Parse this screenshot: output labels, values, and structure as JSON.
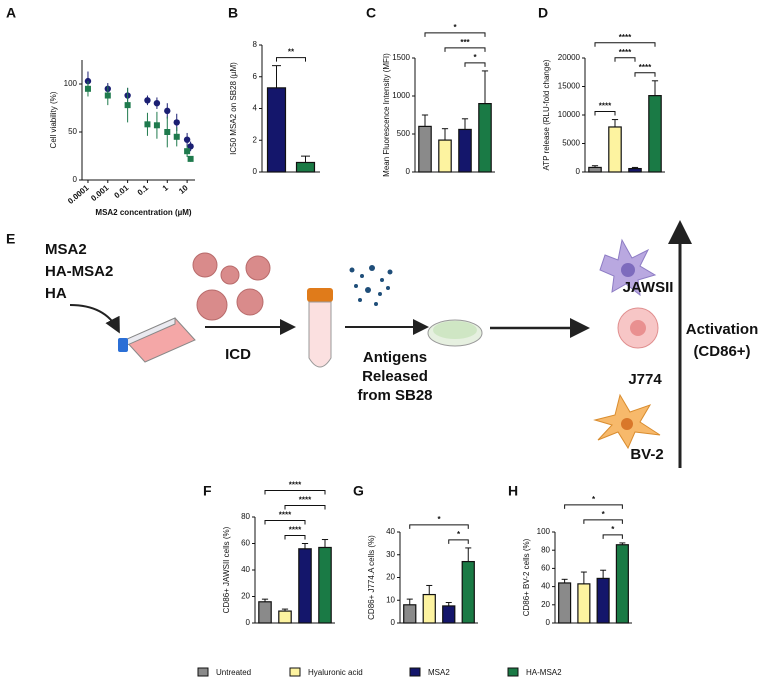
{
  "chart_data": [
    {
      "panel": "A",
      "type": "scatter",
      "y_label": "Cell viability (%)",
      "x_label": "MSA2 concentration (µM)",
      "log_x": true,
      "xlim": [
        5e-05,
        25
      ],
      "xticks": [
        0.0001,
        0.001,
        0.01,
        0.1,
        1,
        10
      ],
      "ylim": [
        0,
        125
      ],
      "yticks": [
        0,
        50,
        100
      ],
      "series": [
        {
          "color": "#1b1f73",
          "x": [
            0.0001,
            0.001,
            0.01,
            0.1,
            0.3,
            1,
            3,
            10,
            15
          ],
          "values": [
            103,
            95,
            88,
            83,
            80,
            72,
            60,
            42,
            35
          ],
          "errors": [
            10,
            6,
            8,
            5,
            6,
            8,
            9,
            7,
            5
          ]
        },
        {
          "color": "#1f7a4d",
          "x": [
            0.0001,
            0.001,
            0.01,
            0.1,
            0.3,
            1,
            3,
            10,
            15
          ],
          "values": [
            95,
            88,
            78,
            58,
            57,
            50,
            45,
            30,
            22
          ],
          "errors": [
            8,
            10,
            18,
            12,
            14,
            16,
            10,
            6,
            3
          ]
        }
      ]
    },
    {
      "panel": "B",
      "type": "bar",
      "y_label": "IC50 MSA2 on SB28 (µM)",
      "ylim": [
        0,
        8
      ],
      "yticks": [
        0,
        2,
        4,
        6,
        8
      ],
      "values": [
        5.3,
        0.6
      ],
      "errors": [
        1.4,
        0.4
      ],
      "colors": [
        "#14166b",
        "#1a7a45"
      ],
      "annotations": [
        {
          "label": "**",
          "pair": [
            0,
            1
          ]
        }
      ]
    },
    {
      "panel": "C",
      "type": "bar",
      "y_label": "Mean Fluorescence Intensity (MFI)",
      "ylim": [
        0,
        1500
      ],
      "yticks": [
        0,
        500,
        1000,
        1500
      ],
      "values": [
        600,
        420,
        560,
        900
      ],
      "errors": [
        150,
        150,
        140,
        430
      ],
      "colors": [
        "#8a8a8a",
        "#fdf3a0",
        "#14166b",
        "#1a7a45"
      ],
      "annotations": [
        {
          "label": "*",
          "pair": [
            2,
            3
          ]
        },
        {
          "label": "***",
          "pair": [
            1,
            3
          ]
        },
        {
          "label": "*",
          "pair": [
            0,
            3
          ]
        }
      ]
    },
    {
      "panel": "D",
      "type": "bar",
      "y_label": "ATP release (RLU-fold change)",
      "ylim": [
        0,
        20000
      ],
      "yticks": [
        0,
        5000,
        10000,
        15000,
        20000
      ],
      "values": [
        800,
        7900,
        600,
        13400
      ],
      "errors": [
        300,
        1300,
        200,
        2600
      ],
      "colors": [
        "#8a8a8a",
        "#fdf3a0",
        "#14166b",
        "#1a7a45"
      ],
      "annotations": [
        {
          "label": "****",
          "pair": [
            0,
            1
          ]
        },
        {
          "label": "****",
          "pair": [
            2,
            3
          ]
        },
        {
          "label": "****",
          "pair": [
            1,
            2
          ]
        },
        {
          "label": "****",
          "pair": [
            0,
            3
          ]
        }
      ]
    },
    {
      "panel": "F",
      "type": "bar",
      "y_label": "CD86+ JAWSII cells (%)",
      "ylim": [
        0,
        80
      ],
      "yticks": [
        0,
        20,
        40,
        60,
        80
      ],
      "values": [
        16,
        9,
        56,
        57
      ],
      "errors": [
        2,
        1.5,
        4,
        6
      ],
      "colors": [
        "#8a8a8a",
        "#fdf3a0",
        "#14166b",
        "#1a7a45"
      ],
      "annotations": [
        {
          "label": "****",
          "pair": [
            1,
            2
          ]
        },
        {
          "label": "****",
          "pair": [
            0,
            2
          ]
        },
        {
          "label": "****",
          "pair": [
            1,
            3
          ]
        },
        {
          "label": "****",
          "pair": [
            0,
            3
          ]
        }
      ]
    },
    {
      "panel": "G",
      "type": "bar",
      "y_label": "CD86+ J774.A cells (%)",
      "ylim": [
        0,
        40
      ],
      "yticks": [
        0,
        10,
        20,
        30,
        40
      ],
      "values": [
        8,
        12.5,
        7.5,
        27
      ],
      "errors": [
        2.5,
        4,
        1.5,
        6
      ],
      "colors": [
        "#8a8a8a",
        "#fdf3a0",
        "#14166b",
        "#1a7a45"
      ],
      "annotations": [
        {
          "label": "*",
          "pair": [
            2,
            3
          ]
        },
        {
          "label": "*",
          "pair": [
            0,
            3
          ]
        }
      ]
    },
    {
      "panel": "H",
      "type": "bar",
      "y_label": "CD86+ BV-2 cells (%)",
      "ylim": [
        0,
        100
      ],
      "yticks": [
        0,
        20,
        40,
        60,
        80,
        100
      ],
      "values": [
        44,
        43,
        49,
        86
      ],
      "errors": [
        4,
        13,
        9,
        2
      ],
      "colors": [
        "#8a8a8a",
        "#fdf3a0",
        "#14166b",
        "#1a7a45"
      ],
      "annotations": [
        {
          "label": "*",
          "pair": [
            2,
            3
          ]
        },
        {
          "label": "*",
          "pair": [
            1,
            3
          ]
        },
        {
          "label": "*",
          "pair": [
            0,
            3
          ]
        }
      ]
    }
  ],
  "diagram": {
    "panel": "E",
    "treatments": [
      "MSA2",
      "HA-MSA2",
      "HA"
    ],
    "step1": "ICD",
    "step2": [
      "Antigens",
      "Released",
      "from SB28"
    ],
    "cells": [
      "JAWSII",
      "J774",
      "BV-2"
    ],
    "outcome": [
      "Activation",
      "(CD86+)"
    ]
  },
  "legend": [
    {
      "name": "Untreated",
      "color": "#8a8a8a"
    },
    {
      "name": "Hyaluronic acid",
      "color": "#fdf3a0"
    },
    {
      "name": "MSA2",
      "color": "#14166b"
    },
    {
      "name": "HA-MSA2",
      "color": "#1a7a45"
    }
  ]
}
